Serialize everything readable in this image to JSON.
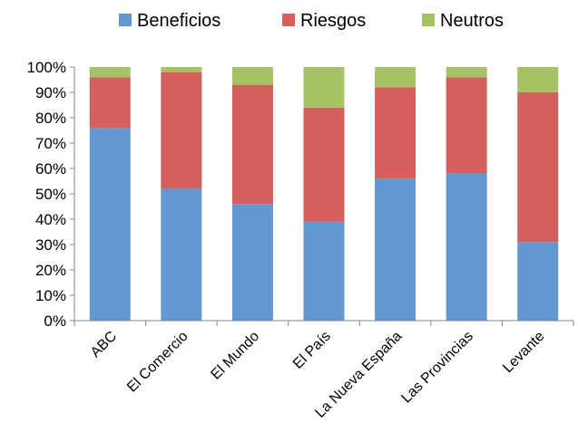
{
  "chart_data": {
    "type": "bar",
    "stacked": true,
    "percent": true,
    "categories": [
      "ABC",
      "El Comercio",
      "El Mundo",
      "El País",
      "La Nueva España",
      "Las Provincias",
      "Levante"
    ],
    "series": [
      {
        "name": "Beneficios",
        "color": "#6397cf",
        "values": [
          76,
          52,
          46,
          39,
          56,
          58,
          31
        ]
      },
      {
        "name": "Riesgos",
        "color": "#d45f5d",
        "values": [
          20,
          46,
          47,
          45,
          36,
          38,
          59
        ]
      },
      {
        "name": "Neutros",
        "color": "#a5c365",
        "values": [
          4,
          2,
          7,
          16,
          8,
          4,
          10
        ]
      }
    ],
    "ylim": [
      0,
      100
    ],
    "yticks": [
      "0%",
      "10%",
      "20%",
      "30%",
      "40%",
      "50%",
      "60%",
      "70%",
      "80%",
      "90%",
      "100%"
    ],
    "xlabel": "",
    "ylabel": "",
    "title": "",
    "grid": false,
    "legend": "top"
  }
}
